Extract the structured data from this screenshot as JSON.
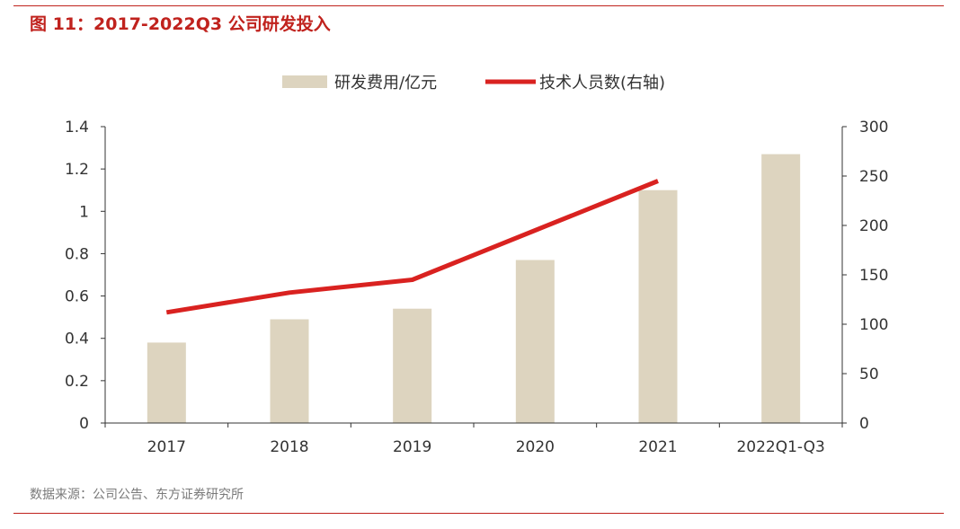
{
  "figure": {
    "title": "图 11：2017-2022Q3 公司研发投入",
    "source": "数据来源：公司公告、东方证券研究所"
  },
  "colors": {
    "accent": "#c0221d",
    "bar": "#ddd4bf",
    "line": "#d92220",
    "axis": "#333333"
  },
  "chart_data": {
    "type": "bar",
    "categories": [
      "2017",
      "2018",
      "2019",
      "2020",
      "2021",
      "2022Q1-Q3"
    ],
    "series": [
      {
        "name": "研发费用/亿元",
        "type": "bar",
        "axis": "left",
        "values": [
          0.38,
          0.49,
          0.54,
          0.77,
          1.1,
          1.27
        ]
      },
      {
        "name": "技术人员数(右轴)",
        "type": "line",
        "axis": "right",
        "values": [
          112,
          132,
          145,
          195,
          245,
          null
        ]
      }
    ],
    "y_left": {
      "lim": [
        0,
        1.4
      ],
      "ticks": [
        "0",
        "0.2",
        "0.4",
        "0.6",
        "0.8",
        "1",
        "1.2",
        "1.4"
      ]
    },
    "y_right": {
      "lim": [
        0,
        300
      ],
      "ticks": [
        "0",
        "50",
        "100",
        "150",
        "200",
        "250",
        "300"
      ]
    },
    "legend_position": "top-center",
    "grid": false
  }
}
